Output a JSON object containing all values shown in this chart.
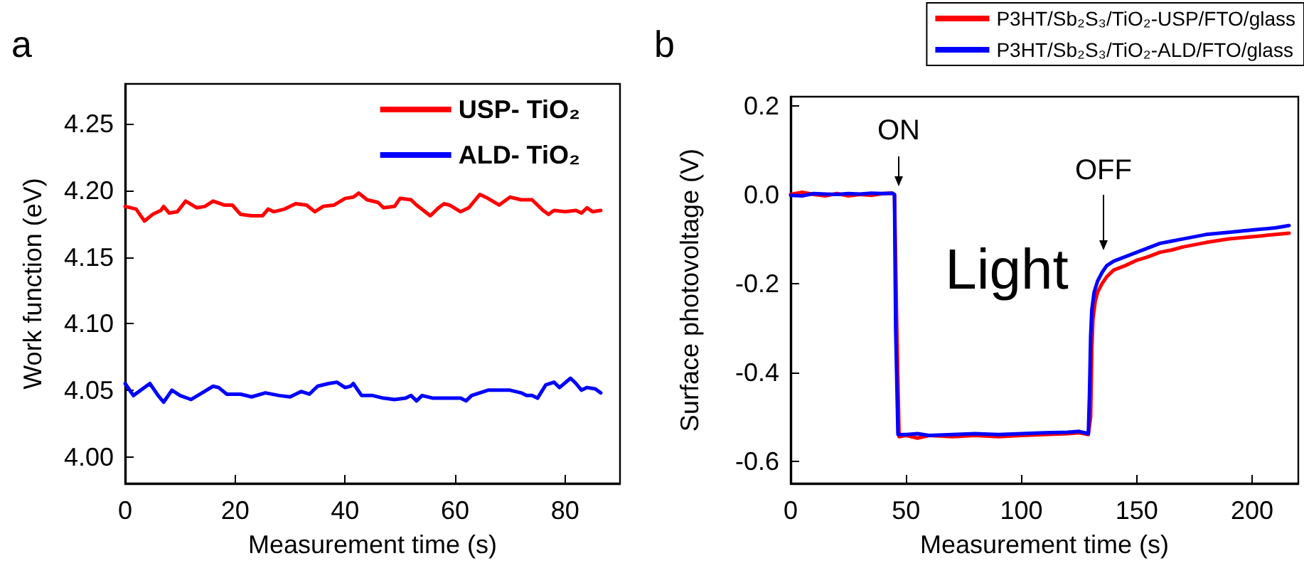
{
  "chart_data": [
    {
      "type": "line",
      "title": "a",
      "xlabel": "Measurement time (s)",
      "ylabel": "Work function (eV)",
      "xlim": [
        0,
        90
      ],
      "xticks": [
        0,
        20,
        40,
        60,
        80
      ],
      "ylim": [
        3.98,
        4.28
      ],
      "yticks": [
        {
          "value": 4,
          "label": "4.00"
        },
        {
          "value": 4.05,
          "label": "4.05"
        },
        {
          "value": 4.1,
          "label": "4.10"
        },
        {
          "value": 4.15,
          "label": "4.15"
        },
        {
          "value": 4.2,
          "label": "4.20"
        },
        {
          "value": 4.25,
          "label": "4.25"
        }
      ],
      "legend": "top right",
      "grid": false,
      "series": [
        {
          "name": "USP- TiO₂",
          "color": "#ff0000",
          "x": [
            0,
            2,
            3.5,
            5,
            6.5,
            7,
            8,
            9.5,
            11,
            13,
            14.5,
            16,
            18,
            19.5,
            21,
            23,
            25,
            26,
            27,
            29,
            31,
            33,
            34.5,
            36,
            38,
            40,
            41.5,
            42.5,
            44,
            46,
            47,
            49,
            50,
            52,
            53,
            55.5,
            57,
            58,
            59,
            61,
            62.5,
            64.5,
            66,
            68,
            70,
            72,
            74,
            76,
            77,
            78,
            80,
            82,
            83,
            84,
            85,
            86.5
          ],
          "values": [
            4.188,
            4.186,
            4.177,
            4.182,
            4.185,
            4.188,
            4.183,
            4.184,
            4.192,
            4.187,
            4.188,
            4.192,
            4.189,
            4.189,
            4.182,
            4.181,
            4.181,
            4.186,
            4.184,
            4.186,
            4.19,
            4.189,
            4.184,
            4.188,
            4.189,
            4.194,
            4.195,
            4.198,
            4.193,
            4.191,
            4.187,
            4.188,
            4.194,
            4.193,
            4.189,
            4.181,
            4.187,
            4.19,
            4.189,
            4.184,
            4.187,
            4.197,
            4.194,
            4.189,
            4.195,
            4.193,
            4.193,
            4.185,
            4.182,
            4.185,
            4.184,
            4.185,
            4.183,
            4.187,
            4.184,
            4.185
          ]
        },
        {
          "name": "ALD- TiO₂",
          "color": "#0000ff",
          "x": [
            0,
            1.5,
            4.5,
            6,
            7,
            8.5,
            10,
            12,
            14,
            16,
            17,
            18.5,
            21,
            23,
            25.5,
            28,
            30,
            32,
            33.5,
            35,
            37,
            38.5,
            40,
            41,
            41.5,
            43,
            45,
            47,
            49,
            51,
            52,
            53,
            54,
            56,
            59,
            61,
            62,
            63,
            66,
            68,
            70,
            72,
            73,
            74,
            75,
            76.5,
            78,
            79,
            81,
            82,
            83,
            84,
            85.5,
            86.5
          ],
          "values": [
            4.055,
            4.046,
            4.055,
            4.046,
            4.041,
            4.05,
            4.046,
            4.043,
            4.048,
            4.053,
            4.052,
            4.047,
            4.047,
            4.045,
            4.048,
            4.046,
            4.045,
            4.049,
            4.047,
            4.053,
            4.055,
            4.056,
            4.052,
            4.053,
            4.055,
            4.046,
            4.046,
            4.044,
            4.043,
            4.044,
            4.046,
            4.042,
            4.046,
            4.044,
            4.044,
            4.044,
            4.042,
            4.046,
            4.05,
            4.05,
            4.05,
            4.048,
            4.046,
            4.046,
            4.044,
            4.054,
            4.056,
            4.052,
            4.059,
            4.055,
            4.05,
            4.052,
            4.051,
            4.048
          ]
        }
      ]
    },
    {
      "type": "line",
      "title": "b",
      "xlabel": "Measurement time (s)",
      "ylabel": "Surface photovoltage (V)",
      "xlim": [
        0,
        220
      ],
      "xticks": [
        0,
        50,
        100,
        150,
        200
      ],
      "ylim": [
        -0.65,
        0.22
      ],
      "yticks": [
        {
          "value": -0.6,
          "label": "-0.6"
        },
        {
          "value": -0.4,
          "label": "-0.4"
        },
        {
          "value": -0.2,
          "label": "-0.2"
        },
        {
          "value": 0,
          "label": "0.0"
        },
        {
          "value": 0.2,
          "label": "0.2"
        }
      ],
      "legend": "top right",
      "grid": false,
      "annotations": [
        "ON",
        "OFF",
        "Light"
      ],
      "series": [
        {
          "name": "P3HT/Sb₂S₃/TiO₂-USP/FTO/glass",
          "color": "#ff0000",
          "x": [
            0,
            5,
            10,
            15,
            20,
            25,
            30,
            35,
            40,
            44,
            45,
            46,
            47,
            50,
            55,
            60,
            70,
            80,
            90,
            100,
            110,
            120,
            125,
            129,
            130,
            130.5,
            131,
            132,
            133,
            135,
            137,
            140,
            145,
            150,
            155,
            160,
            165,
            170,
            180,
            190,
            200,
            210,
            216
          ],
          "values": [
            0,
            0.005,
            0,
            -0.003,
            0.002,
            -0.003,
            0,
            -0.002,
            0.002,
            0.003,
            0,
            -0.3,
            -0.545,
            -0.542,
            -0.548,
            -0.542,
            -0.545,
            -0.542,
            -0.545,
            -0.542,
            -0.54,
            -0.538,
            -0.536,
            -0.54,
            -0.5,
            -0.35,
            -0.28,
            -0.24,
            -0.22,
            -0.2,
            -0.185,
            -0.17,
            -0.16,
            -0.148,
            -0.14,
            -0.13,
            -0.125,
            -0.118,
            -0.108,
            -0.1,
            -0.095,
            -0.09,
            -0.087
          ]
        },
        {
          "name": "P3HT/Sb₂S₃/TiO₂-ALD/FTO/glass",
          "color": "#0000ff",
          "x": [
            0,
            5,
            10,
            15,
            20,
            25,
            30,
            35,
            40,
            44,
            45,
            45.5,
            46.5,
            50,
            55,
            60,
            70,
            80,
            90,
            100,
            110,
            120,
            125,
            129,
            129.5,
            130,
            130.5,
            131.5,
            133,
            135,
            137,
            140,
            145,
            150,
            155,
            160,
            165,
            170,
            180,
            190,
            200,
            210,
            216
          ],
          "values": [
            -0.002,
            -0.003,
            0.002,
            0.001,
            0,
            0.002,
            0.001,
            0.003,
            0.002,
            0.003,
            0,
            -0.3,
            -0.54,
            -0.54,
            -0.538,
            -0.542,
            -0.54,
            -0.538,
            -0.54,
            -0.538,
            -0.536,
            -0.535,
            -0.533,
            -0.538,
            -0.45,
            -0.32,
            -0.26,
            -0.22,
            -0.195,
            -0.175,
            -0.16,
            -0.15,
            -0.14,
            -0.13,
            -0.12,
            -0.11,
            -0.105,
            -0.1,
            -0.09,
            -0.085,
            -0.08,
            -0.075,
            -0.07
          ]
        }
      ]
    }
  ]
}
